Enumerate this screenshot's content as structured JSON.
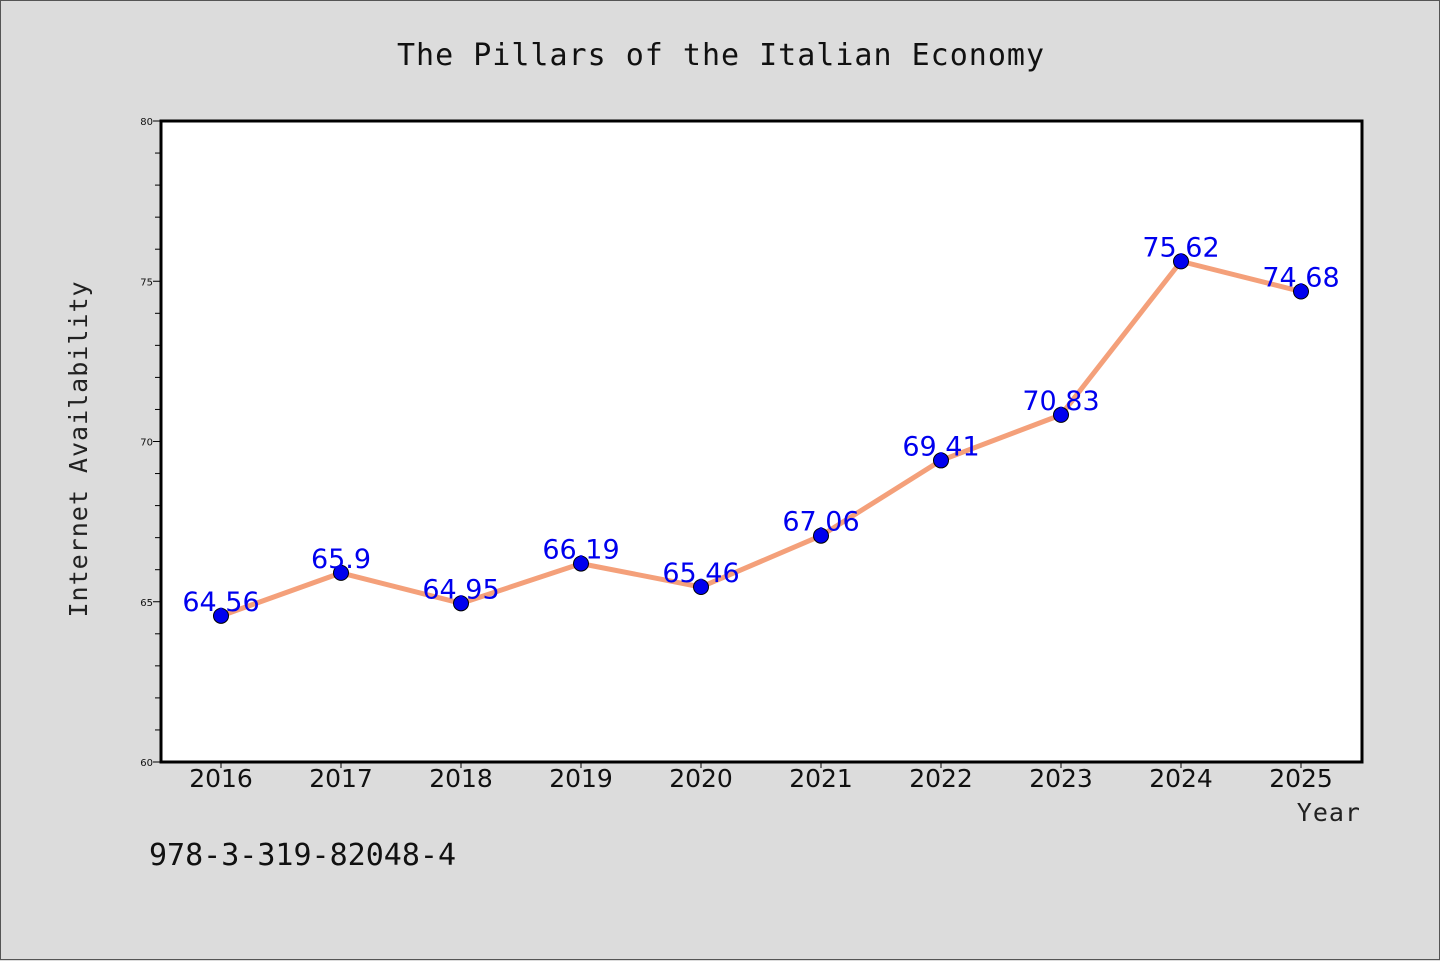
{
  "chart_data": {
    "type": "line",
    "title": "The Pillars of the Italian Economy",
    "xlabel": "Year",
    "ylabel": "Internet Availability",
    "categories": [
      "2016",
      "2017",
      "2018",
      "2019",
      "2020",
      "2021",
      "2022",
      "2023",
      "2024",
      "2025"
    ],
    "series": [
      {
        "values": [
          64.56,
          65.9,
          64.95,
          66.19,
          65.46,
          67.06,
          69.41,
          70.83,
          75.62,
          74.68
        ],
        "data_labels": [
          "64.56",
          "65.9",
          "64.95",
          "66.19",
          "65.46",
          "67.06",
          "69.41",
          "70.83",
          "75.62",
          "74.68"
        ],
        "line_color": "#f4a07a",
        "marker_color": "#0000ee"
      }
    ],
    "ylim": [
      60,
      80
    ],
    "yticks": [
      "60",
      "65",
      "70",
      "75",
      "80"
    ],
    "grid": false,
    "legend": "none"
  },
  "footer": {
    "code": "978-3-319-82048-4"
  },
  "colors": {
    "background": "#dcdcdc",
    "plot_background": "#ffffff",
    "axis": "#000000",
    "line": "#f4a07a",
    "marker": "#0000ee",
    "data_label": "#0000ee"
  }
}
